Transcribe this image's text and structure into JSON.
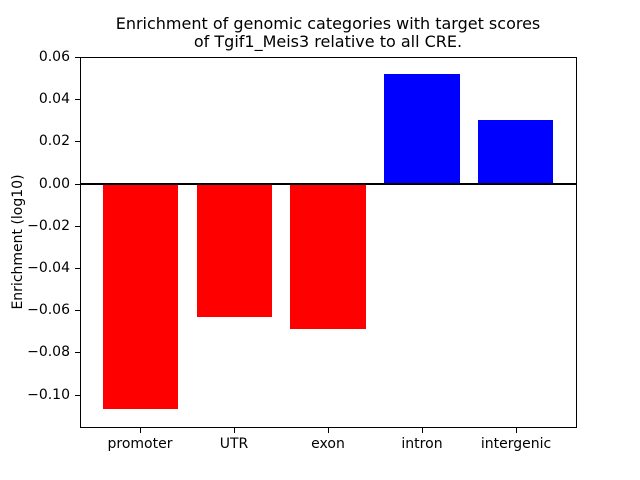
{
  "chart_data": {
    "type": "bar",
    "title_lines": [
      "Enrichment of genomic categories with target scores",
      "of Tgif1_Meis3 relative to all CRE."
    ],
    "ylabel": "Enrichment (log10)",
    "xlabel": "",
    "categories": [
      "promoter",
      "UTR",
      "exon",
      "intron",
      "intergenic"
    ],
    "values": [
      -0.107,
      -0.063,
      -0.069,
      0.052,
      0.03
    ],
    "bar_colors": [
      "#ff0000",
      "#ff0000",
      "#ff0000",
      "#0000ff",
      "#0000ff"
    ],
    "negative_color": "#ff0000",
    "positive_color": "#0000ff",
    "yticks": [
      0.06,
      0.04,
      0.02,
      0.0,
      -0.02,
      -0.04,
      -0.06,
      -0.08,
      -0.1
    ],
    "ytick_labels": [
      "0.06",
      "0.04",
      "0.02",
      "0.00",
      "−0.02",
      "−0.04",
      "−0.06",
      "−0.08",
      "−0.10"
    ],
    "ylim": [
      -0.1153,
      0.06
    ],
    "xlim": [
      -0.64,
      4.64
    ],
    "bar_width": 0.8,
    "zero_line_y": 0.0,
    "grid": false,
    "legend_position": "none",
    "background_color": "#ffffff",
    "axis_color": "#000000"
  }
}
